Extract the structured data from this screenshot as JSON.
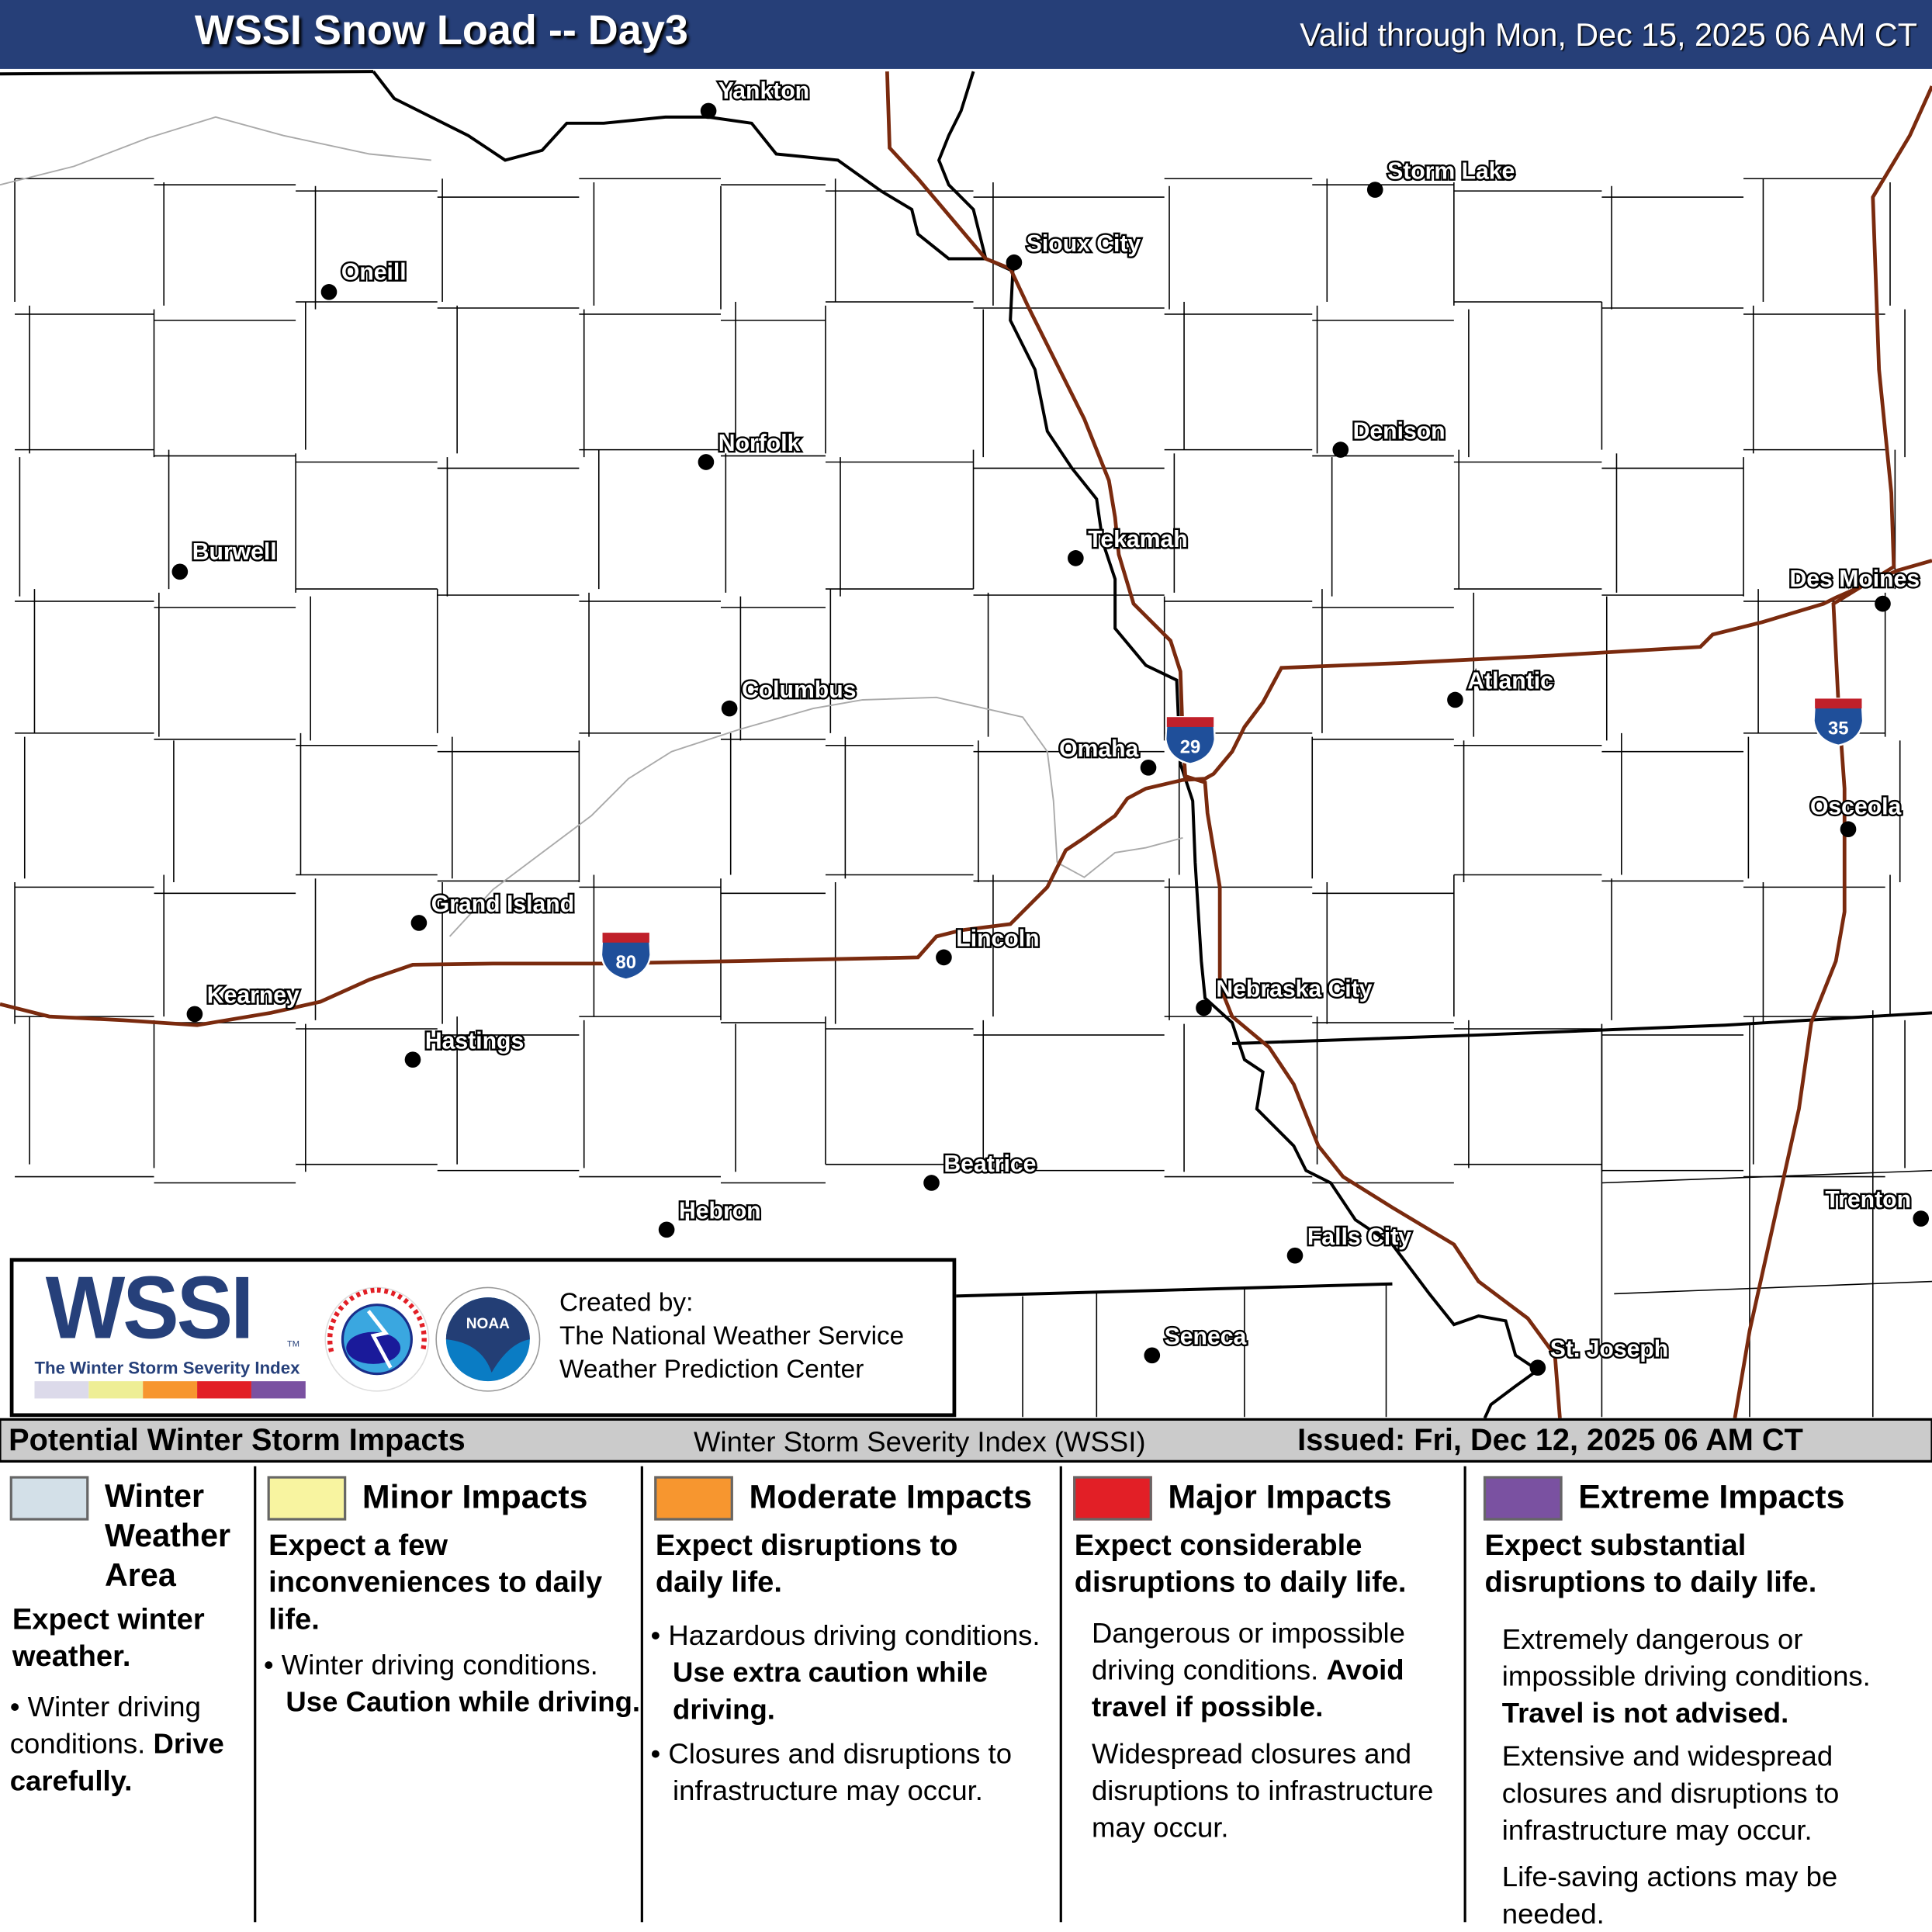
{
  "header": {
    "title": "WSSI Snow Load -- Day3",
    "valid": "Valid through Mon, Dec 15, 2025 06 AM CT",
    "background": "#263f78"
  },
  "map": {
    "cities": [
      "Yankton",
      "Sioux City",
      "Storm Lake",
      "Oneill",
      "Norfolk",
      "Denison",
      "Burwell",
      "Tekamah",
      "Des Moines",
      "Columbus",
      "Atlantic",
      "Omaha",
      "Osceola",
      "Grand Island",
      "Lincoln",
      "Kearney",
      "Hastings",
      "Nebraska City",
      "Beatrice",
      "Hebron",
      "Falls City",
      "Trenton",
      "Seneca",
      "St. Joseph"
    ],
    "shields": [
      "80",
      "29",
      "35"
    ],
    "road_color": "#7a2a0e"
  },
  "logo": {
    "wssi": "WSSI",
    "tm": "TM",
    "subtitle": "The Winter Storm Severity Index",
    "created_by": "Created by:",
    "org1": "The National Weather Service",
    "org2": "Weather Prediction Center",
    "nws_text": "NATIONAL WEATHER SERVICE",
    "noaa_text": "NOAA"
  },
  "legend": {
    "heading": "Potential Winter Storm Impacts",
    "index_name": "Winter Storm Severity Index (WSSI)",
    "issued": "Issued: Fri, Dec 12, 2025 06 AM CT",
    "categories": [
      {
        "title": "Winter Weather Area",
        "color": "#d3e0e8",
        "summary": "Expect winter weather.",
        "b1": "Winter driving conditions.",
        "b1_bold": "Drive carefully."
      },
      {
        "title": "Minor Impacts",
        "color": "#f8f4a0",
        "summary": "Expect a few inconveniences to daily life.",
        "b1": "Winter driving conditions.",
        "b1_bold": "Use Caution while driving."
      },
      {
        "title": "Moderate Impacts",
        "color": "#f7962f",
        "summary": "Expect disruptions to daily life.",
        "b1": "Hazardous driving conditions.",
        "b1_bold": "Use extra caution while driving.",
        "b2": "Closures and disruptions to infrastructure may occur."
      },
      {
        "title": "Major Impacts",
        "color": "#e21f26",
        "summary": "Expect considerable disruptions to daily life.",
        "b1": "Dangerous or impossible driving conditions.",
        "b1_bold": "Avoid travel if possible.",
        "b2": "Widespread closures and disruptions to infrastructure may occur."
      },
      {
        "title": "Extreme Impacts",
        "color": "#7a51a1",
        "summary": "Expect substantial disruptions to daily life.",
        "b1": "Extremely dangerous or impossible driving conditions.",
        "b1_bold": "Travel is not advised.",
        "b2": "Extensive and widespread closures and disruptions to infrastructure may occur.",
        "b3": "Life-saving actions may be needed."
      }
    ]
  }
}
